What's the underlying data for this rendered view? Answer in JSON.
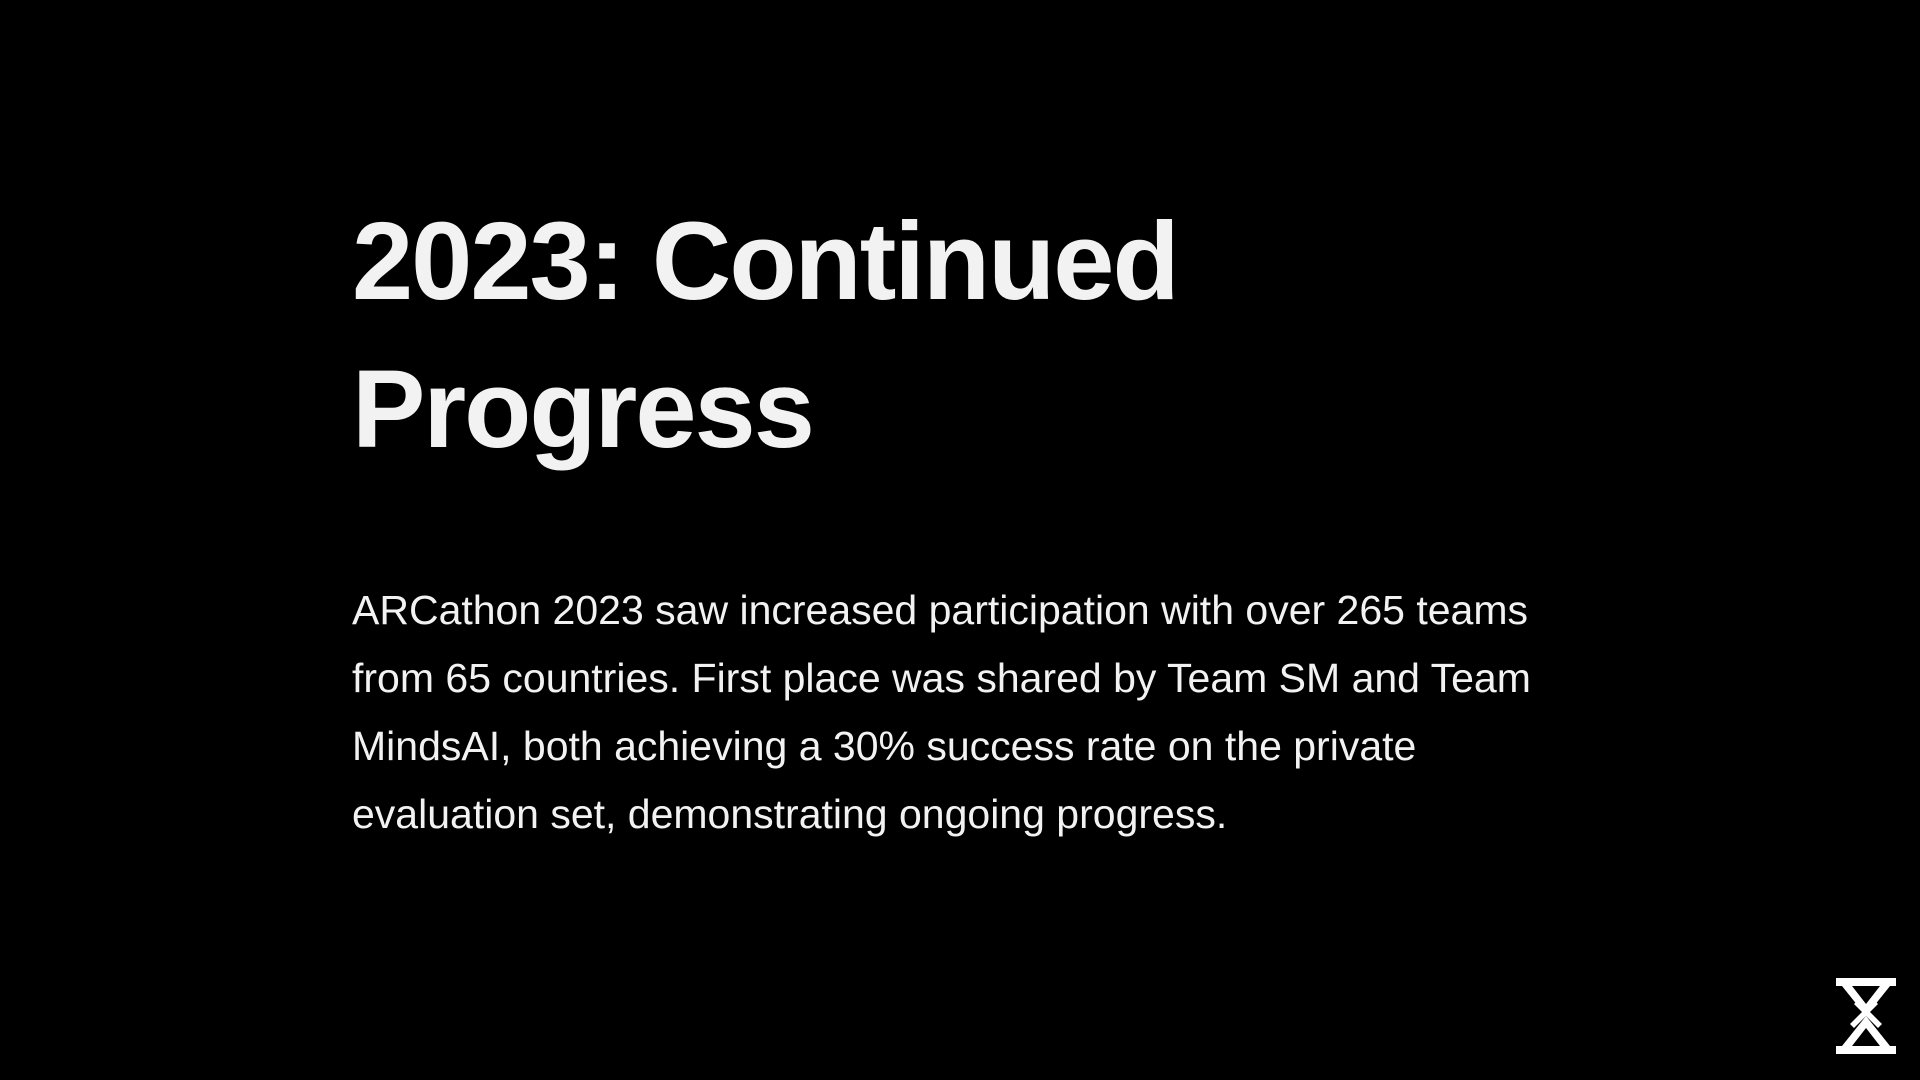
{
  "slide": {
    "title": "2023: Continued Progress",
    "body": "ARCathon 2023 saw increased participation with over 265 teams from 65 countries. First place was shared by Team SM and Team MindsAI, both achieving a 30% success rate on the private evaluation set, demonstrating ongoing progress.",
    "logo_icon": "hourglass-logo-icon"
  },
  "colors": {
    "background": "#000000",
    "text": "#f2f2f2"
  }
}
